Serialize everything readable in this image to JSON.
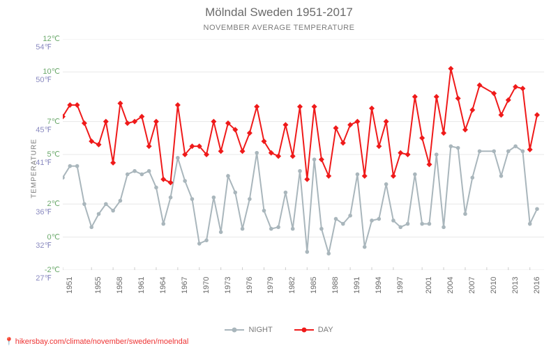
{
  "title": "Mölndal Sweden 1951-2017",
  "subtitle": "NOVEMBER AVERAGE TEMPERATURE",
  "yaxis_title": "TEMPERATURE",
  "source_url": "hikersbay.com/climate/november/sweden/moelndal",
  "chart": {
    "type": "line",
    "background_color": "#ffffff",
    "grid_color": "#e8e8e8",
    "title_fontsize": 17,
    "subtitle_fontsize": 11,
    "ylim_c": [
      -2,
      12
    ],
    "yticks": [
      {
        "c": "-2℃",
        "f": "27℉",
        "val": -2
      },
      {
        "c": "0℃",
        "f": "32℉",
        "val": 0
      },
      {
        "c": "2℃",
        "f": "36℉",
        "val": 2
      },
      {
        "c": "5℃",
        "f": "41℉",
        "val": 5
      },
      {
        "c": "7℃",
        "f": "45℉",
        "val": 7
      },
      {
        "c": "10℃",
        "f": "50℉",
        "val": 10
      },
      {
        "c": "12℃",
        "f": "54℉",
        "val": 12
      }
    ],
    "xlim": [
      1951,
      2017
    ],
    "xticks": [
      1951,
      1955,
      1958,
      1961,
      1964,
      1967,
      1970,
      1973,
      1976,
      1979,
      1982,
      1985,
      1988,
      1991,
      1994,
      1997,
      2001,
      2004,
      2007,
      2010,
      2013,
      2016
    ],
    "series": [
      {
        "name": "NIGHT",
        "color": "#a9b6bc",
        "marker": "circle",
        "marker_size": 4,
        "line_width": 2,
        "years": [
          1951,
          1952,
          1953,
          1954,
          1955,
          1956,
          1957,
          1958,
          1959,
          1960,
          1961,
          1962,
          1963,
          1964,
          1965,
          1966,
          1967,
          1968,
          1969,
          1970,
          1971,
          1972,
          1973,
          1974,
          1975,
          1976,
          1977,
          1978,
          1979,
          1980,
          1981,
          1982,
          1983,
          1984,
          1985,
          1986,
          1987,
          1988,
          1989,
          1990,
          1991,
          1992,
          1993,
          1994,
          1995,
          1996,
          1997,
          1998,
          1999,
          2000,
          2001,
          2002,
          2003,
          2004,
          2005,
          2006,
          2007,
          2008,
          2009,
          2011,
          2012,
          2013,
          2014,
          2015,
          2016,
          2017
        ],
        "values": [
          3.6,
          4.3,
          4.3,
          2.0,
          0.6,
          1.4,
          2.0,
          1.6,
          2.2,
          3.8,
          4.0,
          3.8,
          4.0,
          3.0,
          0.8,
          2.4,
          4.8,
          3.4,
          2.3,
          -0.4,
          -0.2,
          2.4,
          0.3,
          3.7,
          2.7,
          0.5,
          2.3,
          5.1,
          1.6,
          0.5,
          0.6,
          2.7,
          0.5,
          4.0,
          -0.9,
          4.7,
          0.5,
          -1.0,
          1.1,
          0.8,
          1.3,
          3.8,
          -0.6,
          1.0,
          1.1,
          3.2,
          1.0,
          0.6,
          0.8,
          3.8,
          0.8,
          0.8,
          5.0,
          0.6,
          5.5,
          5.4,
          1.4,
          3.6,
          5.2,
          5.2,
          3.7,
          5.2,
          5.5,
          5.2,
          0.8,
          1.7
        ],
        "label": "NIGHT"
      },
      {
        "name": "DAY",
        "color": "#ef1a1a",
        "marker": "diamond",
        "marker_size": 5,
        "line_width": 2,
        "years": [
          1951,
          1952,
          1953,
          1954,
          1955,
          1956,
          1957,
          1958,
          1959,
          1960,
          1961,
          1962,
          1963,
          1964,
          1965,
          1966,
          1967,
          1968,
          1969,
          1970,
          1971,
          1972,
          1973,
          1974,
          1975,
          1976,
          1977,
          1978,
          1979,
          1980,
          1981,
          1982,
          1983,
          1984,
          1985,
          1986,
          1987,
          1988,
          1989,
          1990,
          1991,
          1992,
          1993,
          1994,
          1995,
          1996,
          1997,
          1998,
          1999,
          2000,
          2001,
          2002,
          2003,
          2004,
          2005,
          2006,
          2007,
          2008,
          2009,
          2011,
          2012,
          2013,
          2014,
          2015,
          2016,
          2017
        ],
        "values": [
          7.3,
          8.0,
          8.0,
          6.9,
          5.8,
          5.6,
          7.0,
          4.5,
          8.1,
          6.9,
          7.0,
          7.3,
          5.5,
          7.0,
          3.5,
          3.3,
          8.0,
          5.0,
          5.5,
          5.5,
          5.0,
          7.0,
          5.2,
          6.9,
          6.5,
          5.2,
          6.3,
          7.9,
          5.8,
          5.1,
          4.9,
          6.8,
          4.9,
          7.9,
          3.5,
          7.9,
          4.7,
          3.7,
          6.6,
          5.7,
          6.8,
          7.0,
          3.7,
          7.8,
          5.5,
          7.0,
          3.7,
          5.1,
          5.0,
          8.5,
          6.0,
          4.4,
          8.5,
          6.3,
          10.2,
          8.4,
          6.5,
          7.7,
          9.2,
          8.7,
          7.4,
          8.3,
          9.1,
          9.0,
          5.3,
          7.4
        ],
        "label": "DAY"
      }
    ]
  }
}
